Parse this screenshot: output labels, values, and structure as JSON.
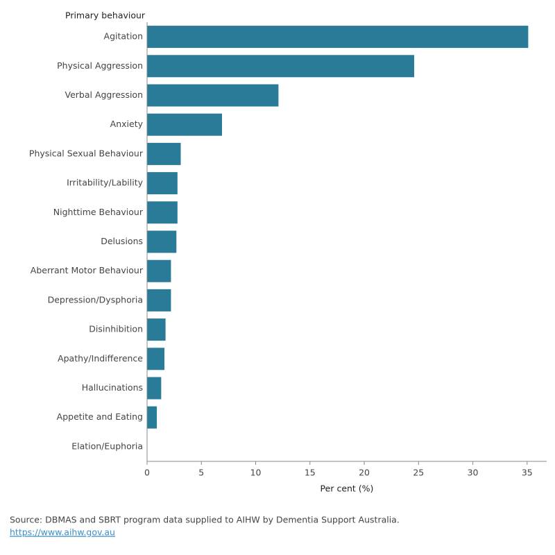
{
  "chart_data": {
    "type": "barh",
    "y_axis_label": "Primary behaviour",
    "x_axis_label": "Per cent (%)",
    "categories": [
      "Agitation",
      "Physical Aggression",
      "Verbal Aggression",
      "Anxiety",
      "Physical Sexual Behaviour",
      "Irritability/Lability",
      "Nighttime Behaviour",
      "Delusions",
      "Aberrant Motor Behaviour",
      "Depression/Dysphoria",
      "Disinhibition",
      "Apathy/Indifference",
      "Hallucinations",
      "Appetite and Eating",
      "Elation/Euphoria"
    ],
    "values": [
      35.1,
      24.6,
      12.1,
      6.9,
      3.1,
      2.8,
      2.8,
      2.7,
      2.2,
      2.2,
      1.7,
      1.6,
      1.3,
      0.9,
      0
    ],
    "color": "#2a7b97",
    "xlim": [
      0,
      36.8
    ],
    "xticks": [
      0,
      5,
      10,
      15,
      20,
      25,
      30,
      35
    ],
    "source": "Source: DBMAS and SBRT program data supplied to AIHW by Dementia Support Australia.",
    "link": "https://www.aihw.gov.au"
  }
}
